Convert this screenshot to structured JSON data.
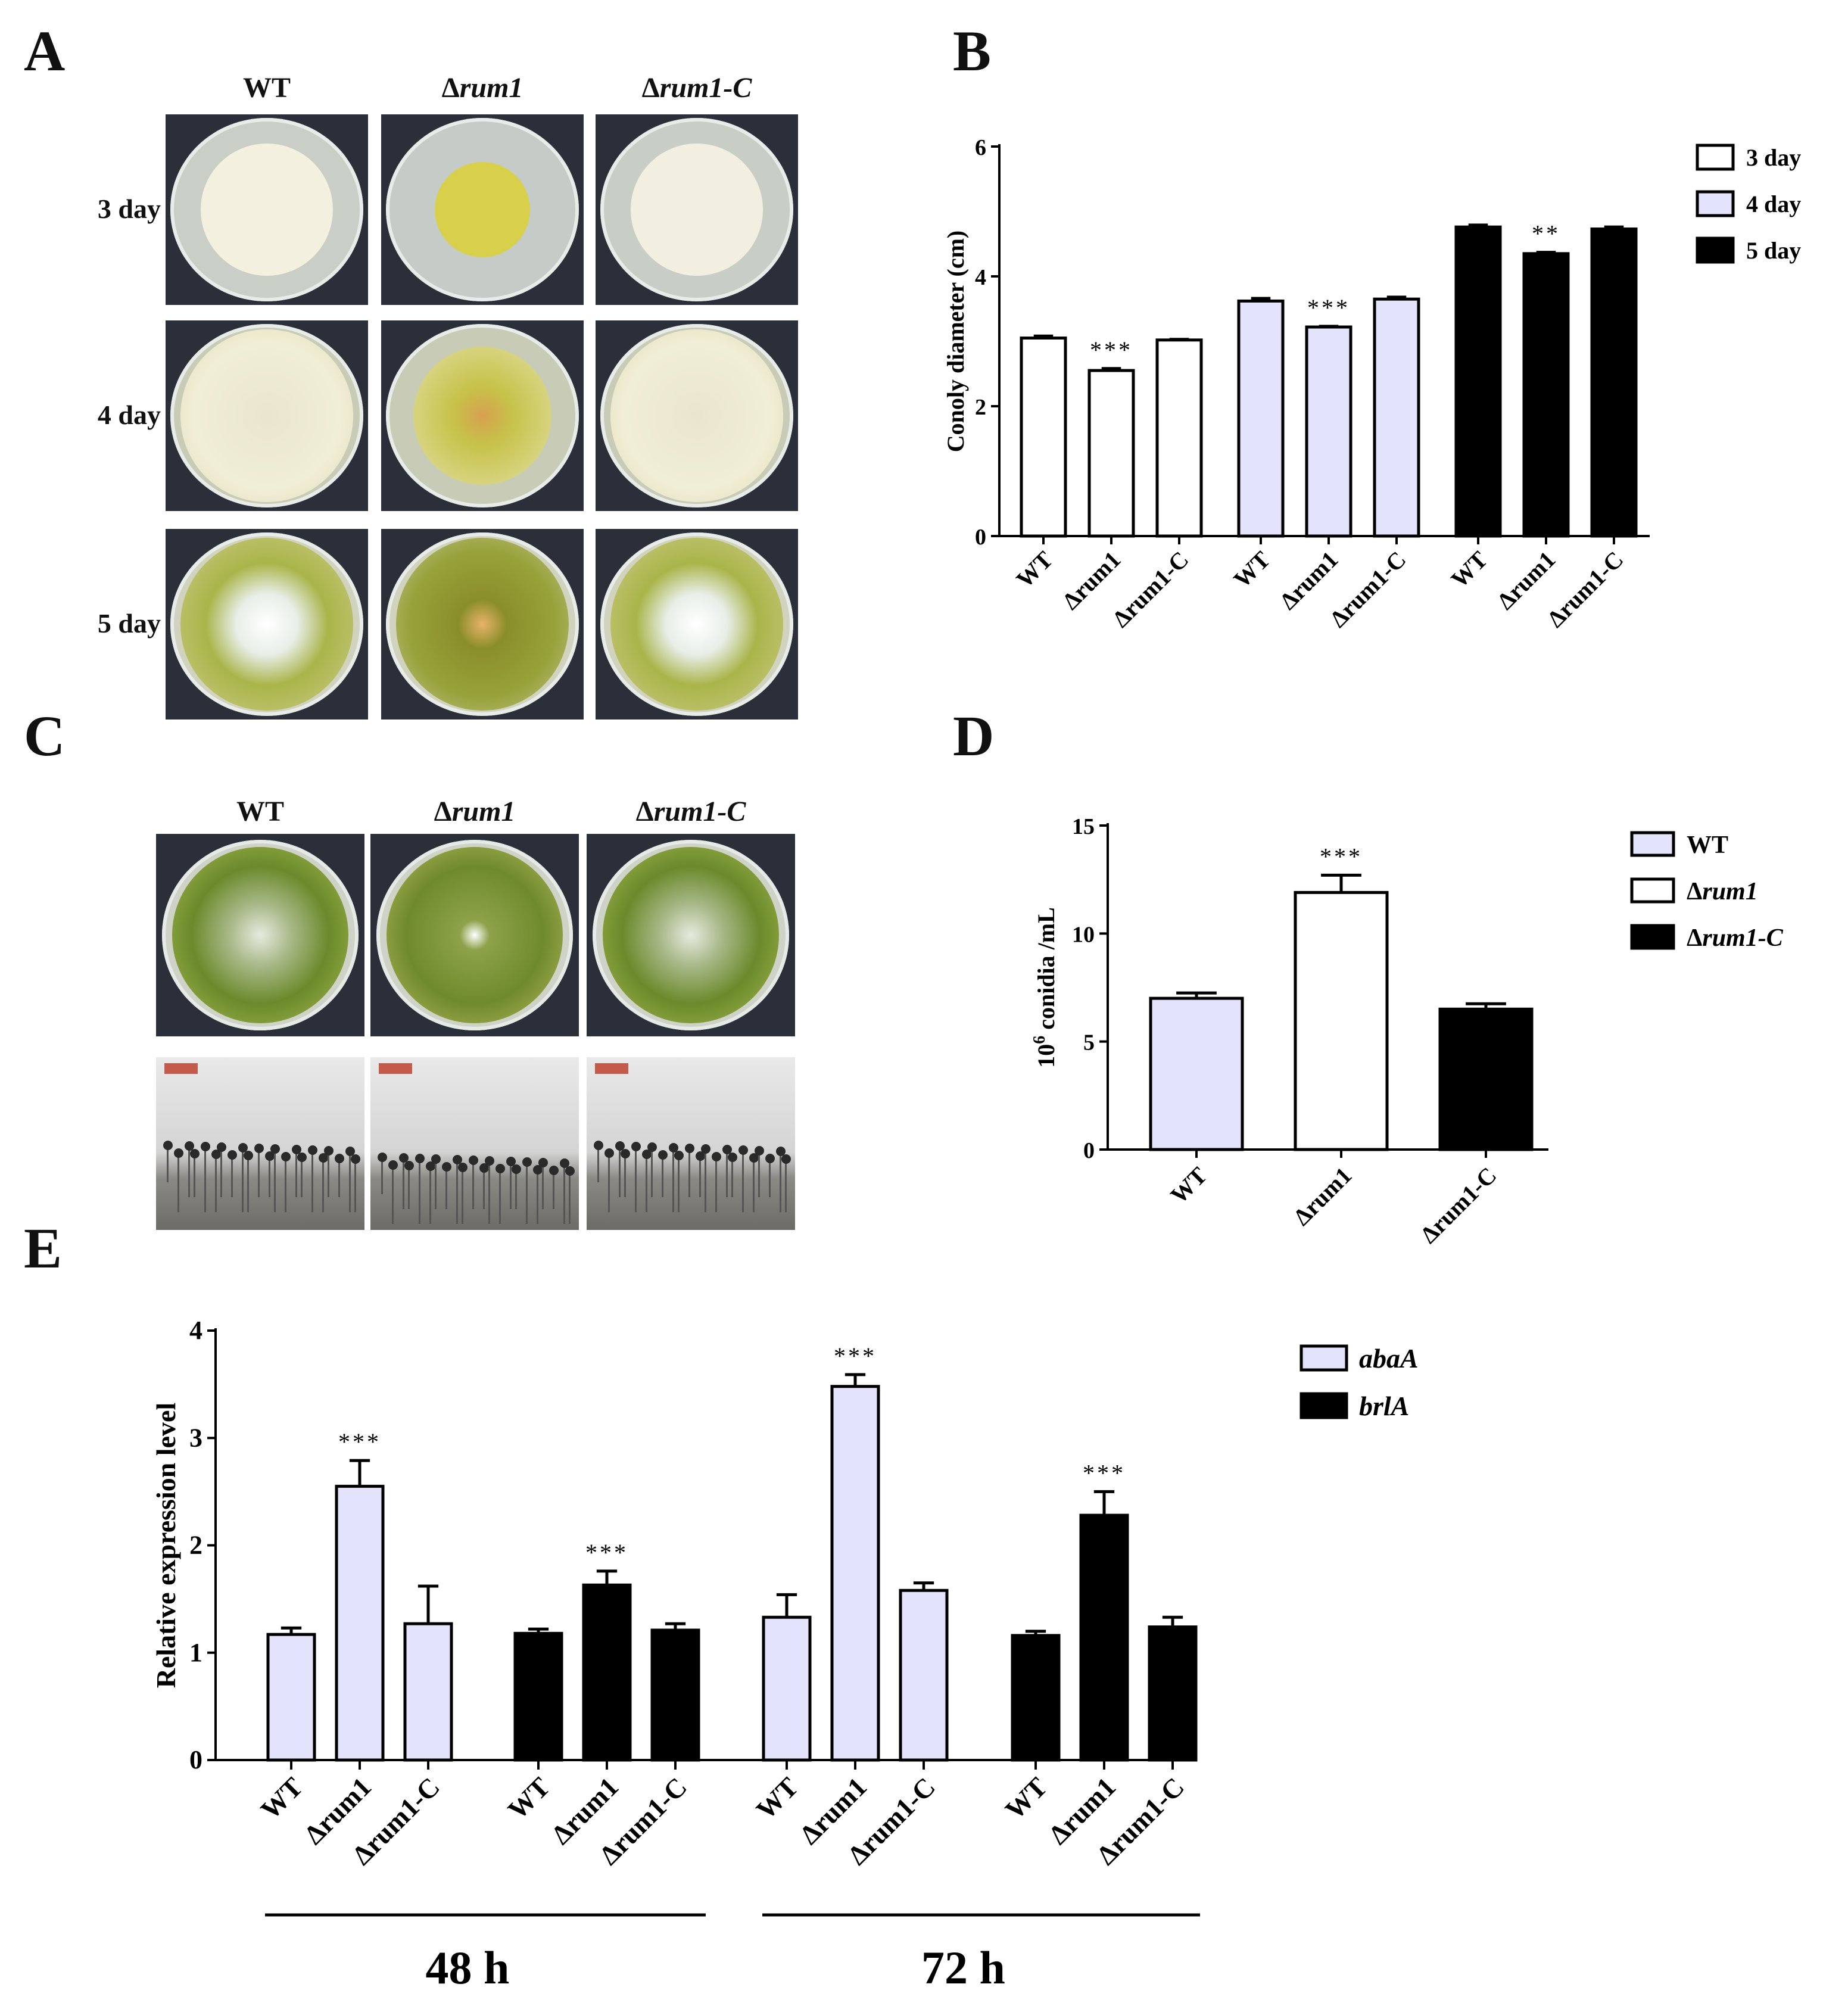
{
  "panel_letters": [
    "A",
    "B",
    "C",
    "D",
    "E"
  ],
  "panel_a": {
    "columns": [
      {
        "pre": "Δ",
        "text": "WT",
        "italic": false
      },
      {
        "pre": "Δ",
        "text": "rum1",
        "italic": true
      },
      {
        "pre": "Δ",
        "text": "rum1-C",
        "italic": true
      }
    ],
    "rows": [
      "3 day",
      "4 day",
      "5 day"
    ]
  },
  "panel_c": {
    "columns": [
      {
        "pre": "Δ",
        "text": "WT",
        "italic": false
      },
      {
        "pre": "Δ",
        "text": "rum1",
        "italic": true
      },
      {
        "pre": "Δ",
        "text": "rum1-C",
        "italic": true
      }
    ]
  },
  "chart_data": [
    {
      "id": "B",
      "type": "bar",
      "title": "",
      "ylabel": "Conoly diameter (cm)",
      "xlabel": "",
      "ylim": [
        0,
        6
      ],
      "yticks": [
        0,
        2,
        4,
        6
      ],
      "categories": [
        "WT",
        "Δrum1",
        "Δrum1-C"
      ],
      "legend": {
        "position": "top-right",
        "entries": [
          "3 day",
          "4 day",
          "5 day"
        ]
      },
      "series": [
        {
          "name": "3 day",
          "color": "#ffffff",
          "values": [
            3.05,
            2.55,
            3.02
          ],
          "errors": [
            0.03,
            0.03,
            0.01
          ],
          "significance": [
            "",
            "***",
            ""
          ]
        },
        {
          "name": "4 day",
          "color": "#e3e3fb",
          "values": [
            3.62,
            3.22,
            3.65
          ],
          "errors": [
            0.04,
            0.01,
            0.03
          ],
          "significance": [
            "",
            "***",
            ""
          ]
        },
        {
          "name": "5 day",
          "color": "#000000",
          "values": [
            4.76,
            4.35,
            4.73
          ],
          "errors": [
            0.03,
            0.02,
            0.03
          ],
          "significance": [
            "",
            "**",
            ""
          ]
        }
      ]
    },
    {
      "id": "D",
      "type": "bar",
      "title": "",
      "ylabel": "10",
      "ylabel_sup": "6",
      "ylabel_rest": " conidia /mL",
      "xlabel": "",
      "ylim": [
        0,
        15
      ],
      "yticks": [
        0,
        5,
        10,
        15
      ],
      "categories": [
        "WT",
        "Δrum1",
        "Δrum1-C"
      ],
      "legend": {
        "position": "top-right",
        "entries": [
          {
            "pre": "",
            "text": "WT",
            "italic": false
          },
          {
            "pre": "Δ",
            "text": "rum1",
            "italic": true
          },
          {
            "pre": "Δ",
            "text": "rum1-C",
            "italic": true
          }
        ]
      },
      "values": [
        7.0,
        11.9,
        6.5
      ],
      "errors": [
        0.25,
        0.8,
        0.25
      ],
      "colors": [
        "#e3e3fb",
        "#ffffff",
        "#000000"
      ],
      "significance": [
        "",
        "***",
        ""
      ]
    },
    {
      "id": "E",
      "type": "bar",
      "title": "",
      "ylabel": "Relative expression level",
      "xlabel": "",
      "ylim": [
        0,
        4
      ],
      "yticks": [
        0,
        1,
        2,
        3,
        4
      ],
      "categories": [
        "WT",
        "Δrum1",
        "Δrum1-C"
      ],
      "time_groups": [
        "48 h",
        "72 h"
      ],
      "legend": {
        "position": "top-right",
        "entries": [
          "abaA",
          "brlA"
        ]
      },
      "series": [
        {
          "name": "abaA",
          "time": "48 h",
          "color": "#e3e3fb",
          "values": [
            1.17,
            2.55,
            1.27
          ],
          "errors": [
            0.06,
            0.24,
            0.35
          ],
          "significance": [
            "",
            "***",
            ""
          ]
        },
        {
          "name": "brlA",
          "time": "48 h",
          "color": "#000000",
          "values": [
            1.18,
            1.63,
            1.21
          ],
          "errors": [
            0.04,
            0.13,
            0.06
          ],
          "significance": [
            "",
            "***",
            ""
          ]
        },
        {
          "name": "abaA",
          "time": "72 h",
          "color": "#e3e3fb",
          "values": [
            1.33,
            3.48,
            1.58
          ],
          "errors": [
            0.21,
            0.11,
            0.07
          ],
          "significance": [
            "",
            "***",
            ""
          ]
        },
        {
          "name": "brlA",
          "time": "72 h",
          "color": "#000000",
          "values": [
            1.16,
            2.28,
            1.24
          ],
          "errors": [
            0.04,
            0.22,
            0.09
          ],
          "significance": [
            "",
            "***",
            ""
          ]
        }
      ]
    }
  ]
}
